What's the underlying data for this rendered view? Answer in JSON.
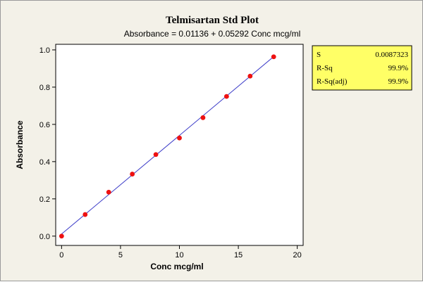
{
  "chart_data": {
    "type": "scatter",
    "title": "Telmisartan Std Plot",
    "subtitle": "Absorbance =  0.01136 + 0.05292 Conc mcg/ml",
    "xlabel": "Conc mcg/ml",
    "ylabel": "Absorbance",
    "xlim": [
      -0.5,
      20.5
    ],
    "ylim": [
      -0.05,
      1.03
    ],
    "x_ticks": [
      0,
      5,
      10,
      15,
      20
    ],
    "x_tick_labels": [
      "0",
      "5",
      "10",
      "15",
      "20"
    ],
    "y_ticks": [
      0.0,
      0.2,
      0.4,
      0.6,
      0.8,
      1.0
    ],
    "y_tick_labels": [
      "0.0",
      "0.2",
      "0.4",
      "0.6",
      "0.8",
      "1.0"
    ],
    "grid": false,
    "legend": "none",
    "series": [
      {
        "x": [
          0,
          2,
          4,
          6,
          8,
          10,
          12,
          14,
          16,
          18
        ],
        "y": [
          0.0,
          0.116,
          0.236,
          0.333,
          0.438,
          0.527,
          0.636,
          0.75,
          0.859,
          0.963
        ],
        "color": "#ee1111"
      }
    ],
    "fit_line": {
      "intercept": 0.01136,
      "slope": 0.05292,
      "x_range": [
        0,
        18
      ],
      "color": "#3c3cc8"
    },
    "stats_box": {
      "position": "top-right",
      "background": "#ffff66",
      "rows": [
        {
          "label": "S",
          "value": "0.0087323"
        },
        {
          "label": "R-Sq",
          "value": "99.9%"
        },
        {
          "label": "R-Sq(adj)",
          "value": "99.9%"
        }
      ]
    }
  },
  "colors": {
    "frame_background": "#f3f1e8",
    "plot_background": "#ffffff",
    "marker": "#ee1111",
    "fit_line": "#3c3cc8",
    "stats_background": "#ffff66"
  }
}
